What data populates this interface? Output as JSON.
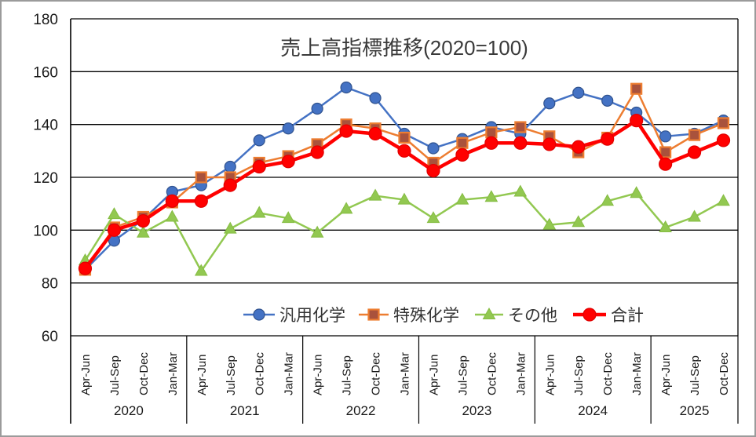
{
  "chart_data": {
    "type": "line",
    "title": "売上高指標推移(2020=100)",
    "legend_position": "bottom-inside",
    "grid": true,
    "y_axis": {
      "min": 60,
      "max": 180,
      "step": 20,
      "ticks": [
        "180",
        "160",
        "140",
        "120",
        "100",
        "80",
        "60"
      ]
    },
    "x_axis": {
      "year_groups": [
        {
          "year": "2020",
          "quarters": [
            "Apr-Jun",
            "Jul-Sep",
            "Oct-Dec",
            "Jan-Mar"
          ]
        },
        {
          "year": "2021",
          "quarters": [
            "Apr-Jun",
            "Jul-Sep",
            "Oct-Dec",
            "Jan-Mar"
          ]
        },
        {
          "year": "2022",
          "quarters": [
            "Apr-Jun",
            "Jul-Sep",
            "Oct-Dec",
            "Jan-Mar"
          ]
        },
        {
          "year": "2023",
          "quarters": [
            "Apr-Jun",
            "Jul-Sep",
            "Oct-Dec",
            "Jan-Mar"
          ]
        },
        {
          "year": "2024",
          "quarters": [
            "Apr-Jun",
            "Jul-Sep",
            "Oct-Dec",
            "Jan-Mar"
          ]
        },
        {
          "year": "2025",
          "quarters": [
            "Apr-Jun",
            "Jul-Sep",
            "Oct-Dec"
          ]
        }
      ]
    },
    "series": [
      {
        "name": "汎用化学",
        "marker": "circle",
        "color": "#4472C4",
        "marker_fill": "#4472C4",
        "marker_stroke": "#31538F",
        "line_width": 2.5,
        "values": [
          85,
          96,
          104,
          114.5,
          117,
          124,
          134,
          138.5,
          146,
          154,
          150,
          136.5,
          131,
          134.5,
          139,
          136.5,
          148,
          152,
          149,
          144.5,
          135.5,
          136.5,
          141.5
        ]
      },
      {
        "name": "特殊化学",
        "marker": "square",
        "color": "#ED7D31",
        "marker_fill": "#A9523C",
        "marker_stroke": "#ED7D31",
        "line_width": 2.5,
        "values": [
          85,
          101,
          105,
          110.5,
          120,
          120,
          125.5,
          128,
          132.5,
          140,
          138.5,
          135,
          125.5,
          133,
          137,
          139,
          135.5,
          129.5,
          135,
          153.5,
          129.5,
          136,
          140.5
        ]
      },
      {
        "name": "その他",
        "marker": "triangle",
        "color": "#92C851",
        "marker_fill": "#92C851",
        "marker_stroke": "#85BC42",
        "line_width": 2.5,
        "values": [
          88.5,
          106,
          99,
          105,
          84.5,
          100.5,
          106.5,
          104.5,
          99,
          108,
          113,
          111.5,
          104.5,
          111.5,
          112.5,
          114.5,
          102,
          103,
          111,
          114,
          101,
          105,
          111
        ]
      },
      {
        "name": "合計",
        "marker": "circle",
        "color": "#FF0000",
        "marker_fill": "#FF0000",
        "marker_stroke": "#E00000",
        "line_width": 4.5,
        "values": [
          85.5,
          100,
          103.5,
          111,
          111,
          117,
          124,
          126,
          129.5,
          137.5,
          136.5,
          130,
          122.5,
          128.5,
          133,
          133,
          132.5,
          131.5,
          134.5,
          141.5,
          125,
          129.5,
          134
        ]
      }
    ],
    "colors": {
      "grid_line": "#000000",
      "axis_text": "#1a1a1a",
      "title_text": "#3a3a3a",
      "legend_text": "#333333"
    }
  }
}
